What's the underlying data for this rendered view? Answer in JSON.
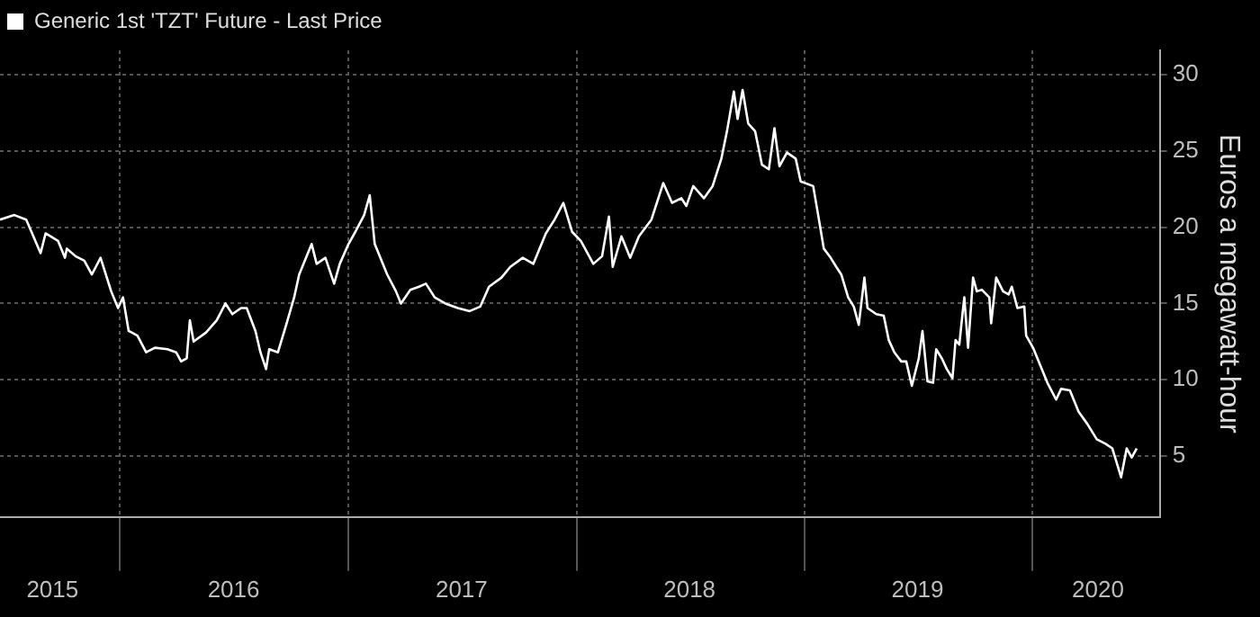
{
  "chart_data": {
    "type": "line",
    "ylabel": "Euros a megawatt-hour",
    "legend": "top left",
    "grid": true,
    "line_style": "solid",
    "marker": "none",
    "xlim": [
      "2015-06-23",
      "2020-07-23"
    ],
    "xticks": [
      {
        "value": "2015-09-15",
        "label": "2015"
      },
      {
        "value": "2016-01-01",
        "label": null
      },
      {
        "value": "2016-07-01",
        "label": "2016"
      },
      {
        "value": "2017-01-01",
        "label": null
      },
      {
        "value": "2017-07-01",
        "label": "2017"
      },
      {
        "value": "2018-01-01",
        "label": null
      },
      {
        "value": "2018-07-01",
        "label": "2018"
      },
      {
        "value": "2019-01-01",
        "label": null
      },
      {
        "value": "2019-07-01",
        "label": "2019"
      },
      {
        "value": "2020-01-01",
        "label": null
      },
      {
        "value": "2020-04-15",
        "label": "2020"
      }
    ],
    "ylim": [
      1,
      31.6
    ],
    "yticks": [
      5,
      10,
      15,
      20,
      25,
      30
    ],
    "series": [
      {
        "name": "Generic 1st 'TZT' Future - Last Price",
        "color": "#ffffff",
        "x": [
          "2015-06-23",
          "2015-07-16",
          "2015-08-04",
          "2015-08-27",
          "2015-09-04",
          "2015-09-24",
          "2015-10-05",
          "2015-10-08",
          "2015-10-22",
          "2015-11-05",
          "2015-11-17",
          "2015-12-01",
          "2015-12-18",
          "2015-12-29",
          "2016-01-06",
          "2016-01-15",
          "2016-01-29",
          "2016-02-12",
          "2016-02-26",
          "2016-03-17",
          "2016-03-31",
          "2016-04-08",
          "2016-04-17",
          "2016-04-22",
          "2016-04-28",
          "2016-05-18",
          "2016-06-04",
          "2016-06-18",
          "2016-06-29",
          "2016-07-13",
          "2016-07-22",
          "2016-08-05",
          "2016-08-13",
          "2016-08-22",
          "2016-08-27",
          "2016-09-10",
          "2016-09-24",
          "2016-10-06",
          "2016-10-14",
          "2016-11-03",
          "2016-11-11",
          "2016-11-25",
          "2016-12-09",
          "2016-12-18",
          "2017-01-01",
          "2017-01-12",
          "2017-01-26",
          "2017-02-04",
          "2017-02-12",
          "2017-03-04",
          "2017-03-18",
          "2017-03-26",
          "2017-04-10",
          "2017-04-24",
          "2017-05-05",
          "2017-05-19",
          "2017-06-05",
          "2017-06-25",
          "2017-07-14",
          "2017-07-31",
          "2017-08-14",
          "2017-09-03",
          "2017-09-17",
          "2017-10-07",
          "2017-10-24",
          "2017-11-13",
          "2017-11-27",
          "2017-12-11",
          "2017-12-25",
          "2018-01-08",
          "2018-01-28",
          "2018-02-11",
          "2018-02-22",
          "2018-02-28",
          "2018-03-14",
          "2018-03-28",
          "2018-04-11",
          "2018-05-01",
          "2018-05-20",
          "2018-06-03",
          "2018-06-18",
          "2018-06-26",
          "2018-07-07",
          "2018-07-24",
          "2018-08-07",
          "2018-08-21",
          "2018-08-30",
          "2018-09-10",
          "2018-09-16",
          "2018-09-24",
          "2018-10-03",
          "2018-10-14",
          "2018-10-25",
          "2018-11-05",
          "2018-11-14",
          "2018-11-22",
          "2018-12-04",
          "2018-12-18",
          "2018-12-26",
          "2019-01-15",
          "2019-01-23",
          "2019-02-01",
          "2019-02-12",
          "2019-02-21",
          "2019-03-01",
          "2019-03-12",
          "2019-03-21",
          "2019-03-29",
          "2019-04-07",
          "2019-04-12",
          "2019-04-26",
          "2019-05-08",
          "2019-05-16",
          "2019-05-25",
          "2019-06-05",
          "2019-06-13",
          "2019-06-22",
          "2019-07-03",
          "2019-07-09",
          "2019-07-17",
          "2019-07-26",
          "2019-07-31",
          "2019-08-09",
          "2019-08-17",
          "2019-08-26",
          "2019-08-31",
          "2019-09-06",
          "2019-09-11",
          "2019-09-14",
          "2019-09-20",
          "2019-09-28",
          "2019-10-04",
          "2019-10-12",
          "2019-10-24",
          "2019-10-27",
          "2019-11-04",
          "2019-11-15",
          "2019-11-24",
          "2019-11-29",
          "2019-12-08",
          "2019-12-19",
          "2019-12-22",
          "2020-01-02",
          "2020-01-16",
          "2020-01-25",
          "2020-02-08",
          "2020-02-16",
          "2020-03-01",
          "2020-03-15",
          "2020-03-29",
          "2020-04-13",
          "2020-04-27",
          "2020-05-08",
          "2020-05-22",
          "2020-05-31",
          "2020-06-08",
          "2020-06-16"
        ],
        "values": [
          20.5,
          20.8,
          20.5,
          18.3,
          19.6,
          19.1,
          18.0,
          18.6,
          18.1,
          17.8,
          16.9,
          18.0,
          15.8,
          14.7,
          15.4,
          13.2,
          12.9,
          11.8,
          12.1,
          12.0,
          11.8,
          11.2,
          11.4,
          13.9,
          12.5,
          13.1,
          13.9,
          15.0,
          14.3,
          14.7,
          14.7,
          13.2,
          11.8,
          10.7,
          12.0,
          11.8,
          13.7,
          15.4,
          16.9,
          18.9,
          17.6,
          18.0,
          16.3,
          17.6,
          18.9,
          19.7,
          20.8,
          22.1,
          18.9,
          16.9,
          15.8,
          15.0,
          15.9,
          16.1,
          16.3,
          15.4,
          15.0,
          14.7,
          14.5,
          14.8,
          16.1,
          16.7,
          17.4,
          18.0,
          17.6,
          19.6,
          20.5,
          21.6,
          19.7,
          19.1,
          17.6,
          18.1,
          20.7,
          17.4,
          19.4,
          18.0,
          19.4,
          20.5,
          22.9,
          21.6,
          21.9,
          21.4,
          22.7,
          21.9,
          22.7,
          24.5,
          26.3,
          28.9,
          27.1,
          29.0,
          26.8,
          26.3,
          24.1,
          23.8,
          26.5,
          24.0,
          24.9,
          24.5,
          23.0,
          22.7,
          20.8,
          18.6,
          18.0,
          17.4,
          16.9,
          15.4,
          14.8,
          13.6,
          16.7,
          14.7,
          14.3,
          14.2,
          12.6,
          11.8,
          11.2,
          11.2,
          9.6,
          11.4,
          13.2,
          9.9,
          9.8,
          12.0,
          11.4,
          10.7,
          10.1,
          12.6,
          12.3,
          14.3,
          15.4,
          12.1,
          16.7,
          15.8,
          15.9,
          15.4,
          13.7,
          16.7,
          15.8,
          15.6,
          16.1,
          14.7,
          14.8,
          12.9,
          12.1,
          10.7,
          9.8,
          8.7,
          9.4,
          9.3,
          7.9,
          7.1,
          6.1,
          5.8,
          5.5,
          3.6,
          5.5,
          4.9,
          5.5
        ]
      }
    ]
  }
}
